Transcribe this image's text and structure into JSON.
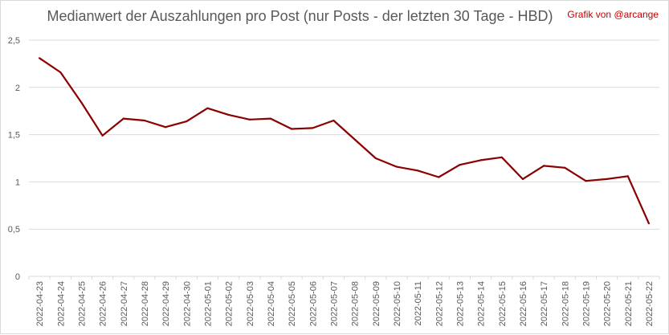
{
  "title": "Medianwert der Auszahlungen pro Post (nur Posts - der letzten 30 Tage - HBD)",
  "credit": "Grafik von @arcange",
  "colors": {
    "line": "#8b0000",
    "grid": "#d9d9d9",
    "text": "#595959",
    "credit": "#c00000"
  },
  "chart_data": {
    "type": "line",
    "title": "Medianwert der Auszahlungen pro Post (nur Posts - der letzten 30 Tage - HBD)",
    "xlabel": "",
    "ylabel": "",
    "ylim": [
      0,
      2.5
    ],
    "yticks": [
      0,
      0.5,
      1,
      1.5,
      2,
      2.5
    ],
    "ytick_labels": [
      "0",
      "0,5",
      "1",
      "1,5",
      "2",
      "2,5"
    ],
    "grid": true,
    "legend": "none",
    "x": [
      "2022-04-23",
      "2022-04-24",
      "2022-04-25",
      "2022-04-26",
      "2022-04-27",
      "2022-04-28",
      "2022-04-29",
      "2022-04-30",
      "2022-05-01",
      "2022-05-02",
      "2022-05-03",
      "2022-05-04",
      "2022-05-05",
      "2022-05-06",
      "2022-05-07",
      "2022-05-08",
      "2022-05-09",
      "2022-05-10",
      "2022-05-11",
      "2022-05-12",
      "2022-05-13",
      "2022-05-14",
      "2022-05-15",
      "2022-05-16",
      "2022-05-17",
      "2022-05-18",
      "2022-05-19",
      "2022-05-20",
      "2022-05-21",
      "2022-05-22"
    ],
    "series": [
      {
        "values": [
          2.31,
          2.16,
          1.84,
          1.49,
          1.67,
          1.65,
          1.58,
          1.64,
          1.78,
          1.71,
          1.66,
          1.67,
          1.56,
          1.57,
          1.65,
          1.45,
          1.25,
          1.16,
          1.12,
          1.05,
          1.18,
          1.23,
          1.26,
          1.03,
          1.17,
          1.15,
          1.01,
          1.03,
          1.06,
          0.56
        ]
      }
    ]
  }
}
